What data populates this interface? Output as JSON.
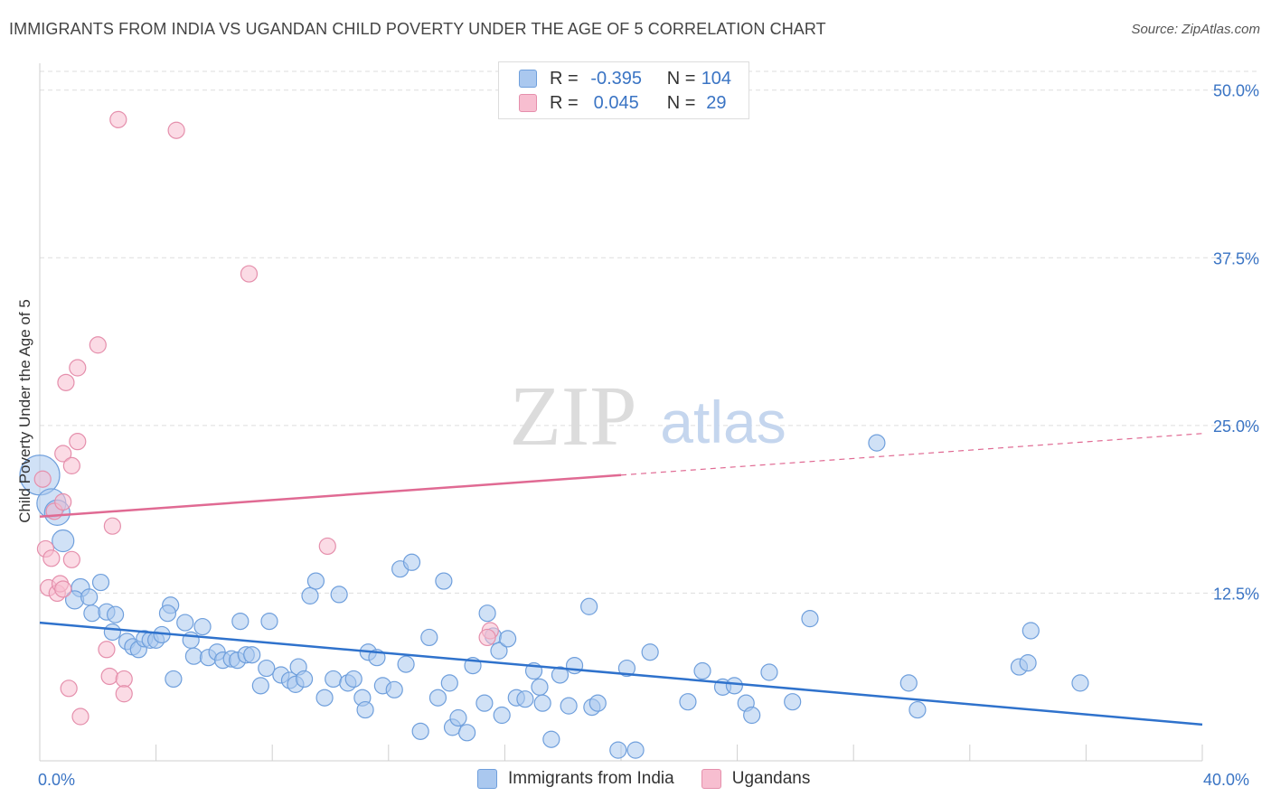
{
  "title": "IMMIGRANTS FROM INDIA VS UGANDAN CHILD POVERTY UNDER THE AGE OF 5 CORRELATION CHART",
  "source": "Source: ZipAtlas.com",
  "watermark": {
    "zip": "ZIP",
    "atlas": "atlas"
  },
  "legend": {
    "r_label": "R =",
    "n_label": "N =",
    "rows": [
      {
        "r": "-0.395",
        "n": "104",
        "color": "#aac8ef",
        "border": "#6f9fdc"
      },
      {
        "r": "0.045",
        "n": "29",
        "color": "#f7bed0",
        "border": "#e58fac"
      }
    ]
  },
  "chart_data": {
    "type": "scatter",
    "title": "IMMIGRANTS FROM INDIA VS UGANDAN CHILD POVERTY UNDER THE AGE OF 5 CORRELATION CHART",
    "xlabel": "",
    "ylabel": "Child Poverty Under the Age of 5",
    "xlim": [
      0,
      40
    ],
    "ylim": [
      0,
      52
    ],
    "x_tick_labels": [
      "0.0%",
      "40.0%"
    ],
    "y_ticks": [
      12.5,
      25,
      37.5,
      50
    ],
    "y_tick_labels": [
      "12.5%",
      "25.0%",
      "37.5%",
      "50.0%"
    ],
    "grid": true,
    "series": [
      {
        "name": "Immigrants from India",
        "color": "#aac8ef",
        "stroke": "#6f9fdc",
        "line_color": "#2f72cc",
        "trend": {
          "x": [
            0,
            40
          ],
          "y": [
            10.3,
            2.7
          ],
          "dashed_from": 40
        },
        "points": [
          [
            0.0,
            21.3,
            22
          ],
          [
            0.4,
            19.2,
            16
          ],
          [
            0.6,
            18.5,
            14
          ],
          [
            0.8,
            16.4,
            12
          ],
          [
            1.4,
            12.9,
            10
          ],
          [
            1.2,
            12.0,
            10
          ],
          [
            1.7,
            12.2,
            9
          ],
          [
            1.8,
            11.0,
            9
          ],
          [
            2.1,
            13.3,
            9
          ],
          [
            2.3,
            11.1,
            9
          ],
          [
            2.6,
            10.9,
            9
          ],
          [
            2.5,
            9.6,
            9
          ],
          [
            3.0,
            8.9,
            9
          ],
          [
            3.2,
            8.5,
            9
          ],
          [
            3.4,
            8.3,
            9
          ],
          [
            3.6,
            9.1,
            9
          ],
          [
            3.8,
            9.0,
            9
          ],
          [
            4.0,
            9.0,
            9
          ],
          [
            4.2,
            9.4,
            9
          ],
          [
            4.5,
            11.6,
            9
          ],
          [
            4.6,
            6.1,
            9
          ],
          [
            4.4,
            11.0,
            9
          ],
          [
            5.0,
            10.3,
            9
          ],
          [
            5.2,
            9.0,
            9
          ],
          [
            5.3,
            7.8,
            9
          ],
          [
            5.6,
            10.0,
            9
          ],
          [
            5.8,
            7.7,
            9
          ],
          [
            6.1,
            8.1,
            9
          ],
          [
            6.3,
            7.5,
            9
          ],
          [
            6.6,
            7.6,
            9
          ],
          [
            6.8,
            7.5,
            9
          ],
          [
            6.9,
            10.4,
            9
          ],
          [
            7.1,
            7.9,
            9
          ],
          [
            7.3,
            7.9,
            9
          ],
          [
            7.6,
            5.6,
            9
          ],
          [
            7.8,
            6.9,
            9
          ],
          [
            7.9,
            10.4,
            9
          ],
          [
            8.3,
            6.4,
            9
          ],
          [
            8.6,
            6.0,
            9
          ],
          [
            8.9,
            7.0,
            9
          ],
          [
            8.8,
            5.7,
            9
          ],
          [
            9.1,
            6.1,
            9
          ],
          [
            9.3,
            12.3,
            9
          ],
          [
            9.5,
            13.4,
            9
          ],
          [
            9.8,
            4.7,
            9
          ],
          [
            10.1,
            6.1,
            9
          ],
          [
            10.3,
            12.4,
            9
          ],
          [
            10.6,
            5.8,
            9
          ],
          [
            10.8,
            6.1,
            9
          ],
          [
            11.1,
            4.7,
            9
          ],
          [
            11.2,
            3.8,
            9
          ],
          [
            11.3,
            8.1,
            9
          ],
          [
            11.6,
            7.7,
            9
          ],
          [
            11.8,
            5.6,
            9
          ],
          [
            12.2,
            5.3,
            9
          ],
          [
            12.4,
            14.3,
            9
          ],
          [
            12.6,
            7.2,
            9
          ],
          [
            12.8,
            14.8,
            9
          ],
          [
            13.1,
            2.2,
            9
          ],
          [
            13.4,
            9.2,
            9
          ],
          [
            13.7,
            4.7,
            9
          ],
          [
            13.9,
            13.4,
            9
          ],
          [
            14.1,
            5.8,
            9
          ],
          [
            14.2,
            2.5,
            9
          ],
          [
            14.4,
            3.2,
            9
          ],
          [
            14.7,
            2.1,
            9
          ],
          [
            14.9,
            7.1,
            9
          ],
          [
            15.3,
            4.3,
            9
          ],
          [
            15.4,
            11.0,
            9
          ],
          [
            15.6,
            9.3,
            9
          ],
          [
            15.8,
            8.2,
            9
          ],
          [
            15.9,
            3.4,
            9
          ],
          [
            16.1,
            9.1,
            9
          ],
          [
            16.4,
            4.7,
            9
          ],
          [
            16.7,
            4.6,
            9
          ],
          [
            17.0,
            6.7,
            9
          ],
          [
            17.2,
            5.5,
            9
          ],
          [
            17.3,
            4.3,
            9
          ],
          [
            17.6,
            1.6,
            9
          ],
          [
            17.9,
            6.4,
            9
          ],
          [
            18.2,
            4.1,
            9
          ],
          [
            18.4,
            7.1,
            9
          ],
          [
            18.9,
            11.5,
            9
          ],
          [
            19.0,
            4.0,
            9
          ],
          [
            19.2,
            4.3,
            9
          ],
          [
            19.9,
            0.8,
            9
          ],
          [
            20.2,
            6.9,
            9
          ],
          [
            20.5,
            0.8,
            9
          ],
          [
            21.0,
            8.1,
            9
          ],
          [
            22.3,
            4.4,
            9
          ],
          [
            22.8,
            6.7,
            9
          ],
          [
            23.5,
            5.5,
            9
          ],
          [
            23.9,
            5.6,
            9
          ],
          [
            24.3,
            4.3,
            9
          ],
          [
            24.5,
            3.4,
            9
          ],
          [
            25.1,
            6.6,
            9
          ],
          [
            25.9,
            4.4,
            9
          ],
          [
            26.5,
            10.6,
            9
          ],
          [
            28.8,
            23.7,
            9
          ],
          [
            29.9,
            5.8,
            9
          ],
          [
            30.2,
            3.8,
            9
          ],
          [
            33.7,
            7.0,
            9
          ],
          [
            34.0,
            7.3,
            9
          ],
          [
            34.1,
            9.7,
            9
          ],
          [
            35.8,
            5.8,
            9
          ]
        ]
      },
      {
        "name": "Ugandans",
        "color": "#f7bed0",
        "stroke": "#e58fac",
        "line_color": "#e06a93",
        "trend": {
          "x": [
            0,
            40
          ],
          "y": [
            18.2,
            24.4
          ],
          "dashed_from": 20
        },
        "points": [
          [
            0.1,
            21.0,
            9
          ],
          [
            0.2,
            15.8,
            9
          ],
          [
            0.3,
            12.9,
            9
          ],
          [
            0.5,
            18.6,
            9
          ],
          [
            0.4,
            15.1,
            9
          ],
          [
            0.6,
            12.5,
            9
          ],
          [
            0.7,
            13.2,
            9
          ],
          [
            0.8,
            19.3,
            9
          ],
          [
            0.8,
            12.8,
            9
          ],
          [
            0.8,
            22.9,
            9
          ],
          [
            0.9,
            28.2,
            9
          ],
          [
            1.0,
            5.4,
            9
          ],
          [
            1.1,
            22.0,
            9
          ],
          [
            1.1,
            15.0,
            9
          ],
          [
            1.3,
            29.3,
            9
          ],
          [
            1.3,
            23.8,
            9
          ],
          [
            1.4,
            3.3,
            9
          ],
          [
            2.0,
            31.0,
            9
          ],
          [
            2.3,
            8.3,
            9
          ],
          [
            2.4,
            6.3,
            9
          ],
          [
            2.5,
            17.5,
            9
          ],
          [
            2.7,
            47.8,
            9
          ],
          [
            2.9,
            6.1,
            9
          ],
          [
            2.9,
            5.0,
            9
          ],
          [
            4.7,
            47.0,
            9
          ],
          [
            7.2,
            36.3,
            9
          ],
          [
            9.9,
            16.0,
            9
          ],
          [
            15.5,
            9.7,
            9
          ],
          [
            15.4,
            9.2,
            9
          ]
        ]
      }
    ]
  },
  "colors": {
    "axis_label_blue": "#3a74c4",
    "grid": "#dddddd",
    "axis": "#cfcfcf"
  }
}
